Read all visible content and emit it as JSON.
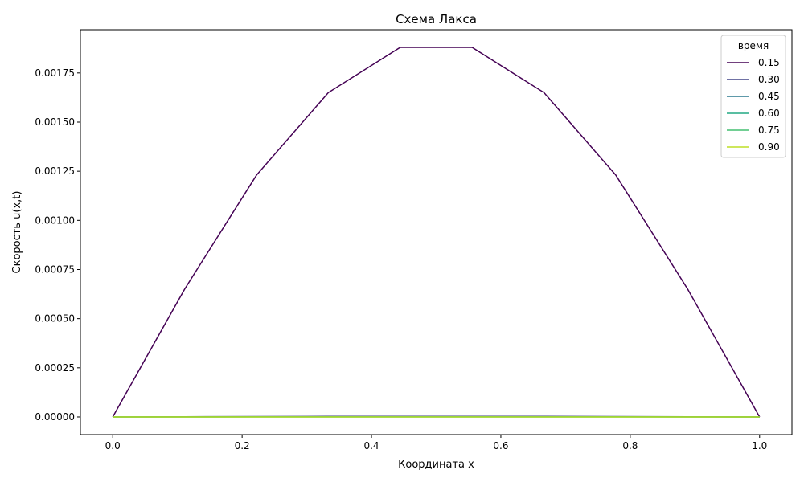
{
  "chart_data": {
    "type": "line",
    "title": "Схема Лакса",
    "xlabel": "Координата x",
    "ylabel": "Скорость u(x,t)",
    "xlim": [
      -0.05,
      1.05
    ],
    "ylim": [
      -9e-05,
      0.00197
    ],
    "x_ticks": [
      0.0,
      0.2,
      0.4,
      0.6,
      0.8,
      1.0
    ],
    "x_tick_labels": [
      "0.0",
      "0.2",
      "0.4",
      "0.6",
      "0.8",
      "1.0"
    ],
    "y_ticks": [
      0.0,
      0.00025,
      0.0005,
      0.00075,
      0.001,
      0.00125,
      0.0015,
      0.00175
    ],
    "y_tick_labels": [
      "0.00000",
      "0.00025",
      "0.00050",
      "0.00075",
      "0.00100",
      "0.00125",
      "0.00150",
      "0.00175"
    ],
    "grid": false,
    "legend_title": "время",
    "legend_position": "top-right",
    "x": [
      0.0,
      0.1111,
      0.2222,
      0.3333,
      0.4444,
      0.5556,
      0.6667,
      0.7778,
      0.8889,
      1.0
    ],
    "series": [
      {
        "name": "0.15",
        "color": "#440154",
        "values": [
          0.0,
          0.00065,
          0.00123,
          0.00165,
          0.00188,
          0.00188,
          0.00165,
          0.00123,
          0.00065,
          0.0
        ]
      },
      {
        "name": "0.30",
        "color": "#414487",
        "values": [
          0.0,
          1e-06,
          2e-06,
          3e-06,
          3e-06,
          3e-06,
          3e-06,
          2e-06,
          1e-06,
          0.0
        ]
      },
      {
        "name": "0.45",
        "color": "#2a788e",
        "values": [
          0.0,
          5e-07,
          1e-06,
          1e-06,
          1.2e-06,
          1.2e-06,
          1e-06,
          1e-06,
          5e-07,
          0.0
        ]
      },
      {
        "name": "0.60",
        "color": "#22a884",
        "values": [
          0.0,
          0.0,
          2e-07,
          3e-07,
          3e-07,
          3e-07,
          3e-07,
          2e-07,
          0.0,
          0.0
        ]
      },
      {
        "name": "0.75",
        "color": "#44bf70",
        "values": [
          0.0,
          0.0,
          0.0,
          0.0,
          0.0,
          0.0,
          0.0,
          0.0,
          0.0,
          0.0
        ]
      },
      {
        "name": "0.90",
        "color": "#bddf26",
        "values": [
          0.0,
          0.0,
          0.0,
          0.0,
          0.0,
          0.0,
          0.0,
          0.0,
          0.0,
          0.0
        ]
      }
    ]
  }
}
